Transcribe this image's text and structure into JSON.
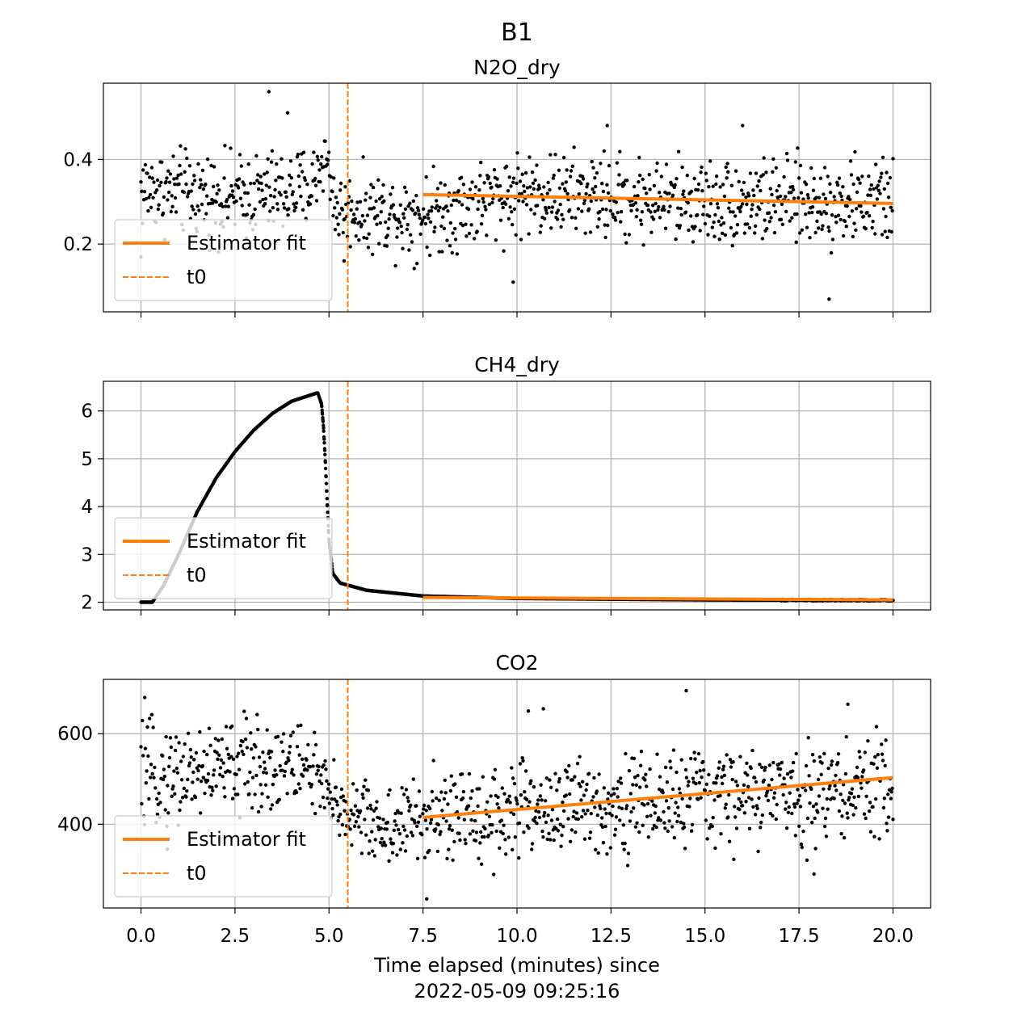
{
  "figure": {
    "suptitle": "B1",
    "xlabel_line1": "Time elapsed (minutes) since",
    "xlabel_line2": "2022-05-09 09:25:16"
  },
  "colors": {
    "points": "#000000",
    "fit": "#ff7f0e",
    "t0": "#ff7f0e",
    "grid": "#b0b0b0"
  },
  "chart_data": [
    {
      "type": "scatter",
      "title": "N2O_dry",
      "xlim": [
        -1.0,
        21.0
      ],
      "ylim": [
        0.04,
        0.58
      ],
      "xticks": [
        0.0,
        2.5,
        5.0,
        7.5,
        10.0,
        12.5,
        15.0,
        17.5,
        20.0
      ],
      "yticks": [
        0.2,
        0.4
      ],
      "ytick_labels": [
        "0.2",
        "0.4"
      ],
      "t0": 5.5,
      "fit": {
        "x": [
          7.5,
          20.0
        ],
        "y": [
          0.317,
          0.296
        ]
      },
      "series_profile": [
        {
          "x": 0.0,
          "y": 0.33,
          "spread": 0.07
        },
        {
          "x": 2.5,
          "y": 0.31,
          "spread": 0.07
        },
        {
          "x": 4.5,
          "y": 0.33,
          "spread": 0.07
        },
        {
          "x": 4.9,
          "y": 0.41,
          "spread": 0.05
        },
        {
          "x": 5.2,
          "y": 0.28,
          "spread": 0.06
        },
        {
          "x": 7.5,
          "y": 0.27,
          "spread": 0.07
        },
        {
          "x": 10.0,
          "y": 0.32,
          "spread": 0.07
        },
        {
          "x": 15.0,
          "y": 0.3,
          "spread": 0.07
        },
        {
          "x": 20.0,
          "y": 0.3,
          "spread": 0.07
        }
      ],
      "outliers": [
        [
          3.4,
          0.56
        ],
        [
          3.9,
          0.51
        ],
        [
          18.3,
          0.07
        ],
        [
          9.9,
          0.11
        ],
        [
          12.4,
          0.48
        ],
        [
          16.0,
          0.48
        ],
        [
          0.0,
          0.17
        ],
        [
          5.4,
          0.16
        ]
      ],
      "legend": [
        "Estimator fit",
        "t0"
      ]
    },
    {
      "type": "scatter",
      "title": "CH4_dry",
      "xlim": [
        -1.0,
        21.0
      ],
      "ylim": [
        1.84,
        6.62
      ],
      "xticks": [
        0.0,
        2.5,
        5.0,
        7.5,
        10.0,
        12.5,
        15.0,
        17.5,
        20.0
      ],
      "yticks": [
        2,
        3,
        4,
        5,
        6
      ],
      "ytick_labels": [
        "2",
        "3",
        "4",
        "5",
        "6"
      ],
      "t0": 5.5,
      "fit": {
        "x": [
          7.5,
          20.0
        ],
        "y": [
          2.1,
          2.05
        ]
      },
      "curve_profile": [
        {
          "x": 0.0,
          "y": 2.0
        },
        {
          "x": 0.3,
          "y": 2.0
        },
        {
          "x": 0.6,
          "y": 2.35
        },
        {
          "x": 1.0,
          "y": 3.0
        },
        {
          "x": 1.5,
          "y": 3.9
        },
        {
          "x": 2.0,
          "y": 4.6
        },
        {
          "x": 2.5,
          "y": 5.15
        },
        {
          "x": 3.0,
          "y": 5.6
        },
        {
          "x": 3.5,
          "y": 5.95
        },
        {
          "x": 4.0,
          "y": 6.2
        },
        {
          "x": 4.5,
          "y": 6.33
        },
        {
          "x": 4.7,
          "y": 6.38
        },
        {
          "x": 4.8,
          "y": 6.15
        },
        {
          "x": 4.85,
          "y": 5.7
        },
        {
          "x": 4.9,
          "y": 5.0
        },
        {
          "x": 4.95,
          "y": 4.1
        },
        {
          "x": 5.0,
          "y": 3.3
        },
        {
          "x": 5.1,
          "y": 2.6
        },
        {
          "x": 5.3,
          "y": 2.4
        },
        {
          "x": 6.0,
          "y": 2.25
        },
        {
          "x": 7.5,
          "y": 2.13
        },
        {
          "x": 10.0,
          "y": 2.08
        },
        {
          "x": 15.0,
          "y": 2.05
        },
        {
          "x": 20.0,
          "y": 2.04
        }
      ],
      "legend": [
        "Estimator fit",
        "t0"
      ]
    },
    {
      "type": "scatter",
      "title": "CO2",
      "xlim": [
        -1.0,
        21.0
      ],
      "ylim": [
        215,
        720
      ],
      "xticks": [
        0.0,
        2.5,
        5.0,
        7.5,
        10.0,
        12.5,
        15.0,
        17.5,
        20.0
      ],
      "xtick_labels": [
        "0.0",
        "2.5",
        "5.0",
        "7.5",
        "10.0",
        "12.5",
        "15.0",
        "17.5",
        "20.0"
      ],
      "yticks": [
        400,
        600
      ],
      "ytick_labels": [
        "400",
        "600"
      ],
      "t0": 5.5,
      "fit": {
        "x": [
          7.5,
          20.0
        ],
        "y": [
          415,
          503
        ]
      },
      "series_profile": [
        {
          "x": 0.0,
          "y": 500,
          "spread": 75
        },
        {
          "x": 2.5,
          "y": 530,
          "spread": 75
        },
        {
          "x": 4.5,
          "y": 530,
          "spread": 70
        },
        {
          "x": 5.0,
          "y": 450,
          "spread": 60
        },
        {
          "x": 6.5,
          "y": 390,
          "spread": 60
        },
        {
          "x": 7.5,
          "y": 410,
          "spread": 70
        },
        {
          "x": 10.0,
          "y": 430,
          "spread": 80
        },
        {
          "x": 15.0,
          "y": 460,
          "spread": 75
        },
        {
          "x": 20.0,
          "y": 480,
          "spread": 75
        }
      ],
      "outliers": [
        [
          0.1,
          680
        ],
        [
          14.5,
          695
        ],
        [
          7.6,
          235
        ],
        [
          10.3,
          650
        ],
        [
          10.7,
          655
        ],
        [
          17.9,
          290
        ],
        [
          18.8,
          665
        ],
        [
          0.7,
          345
        ]
      ],
      "legend": [
        "Estimator fit",
        "t0"
      ]
    }
  ]
}
